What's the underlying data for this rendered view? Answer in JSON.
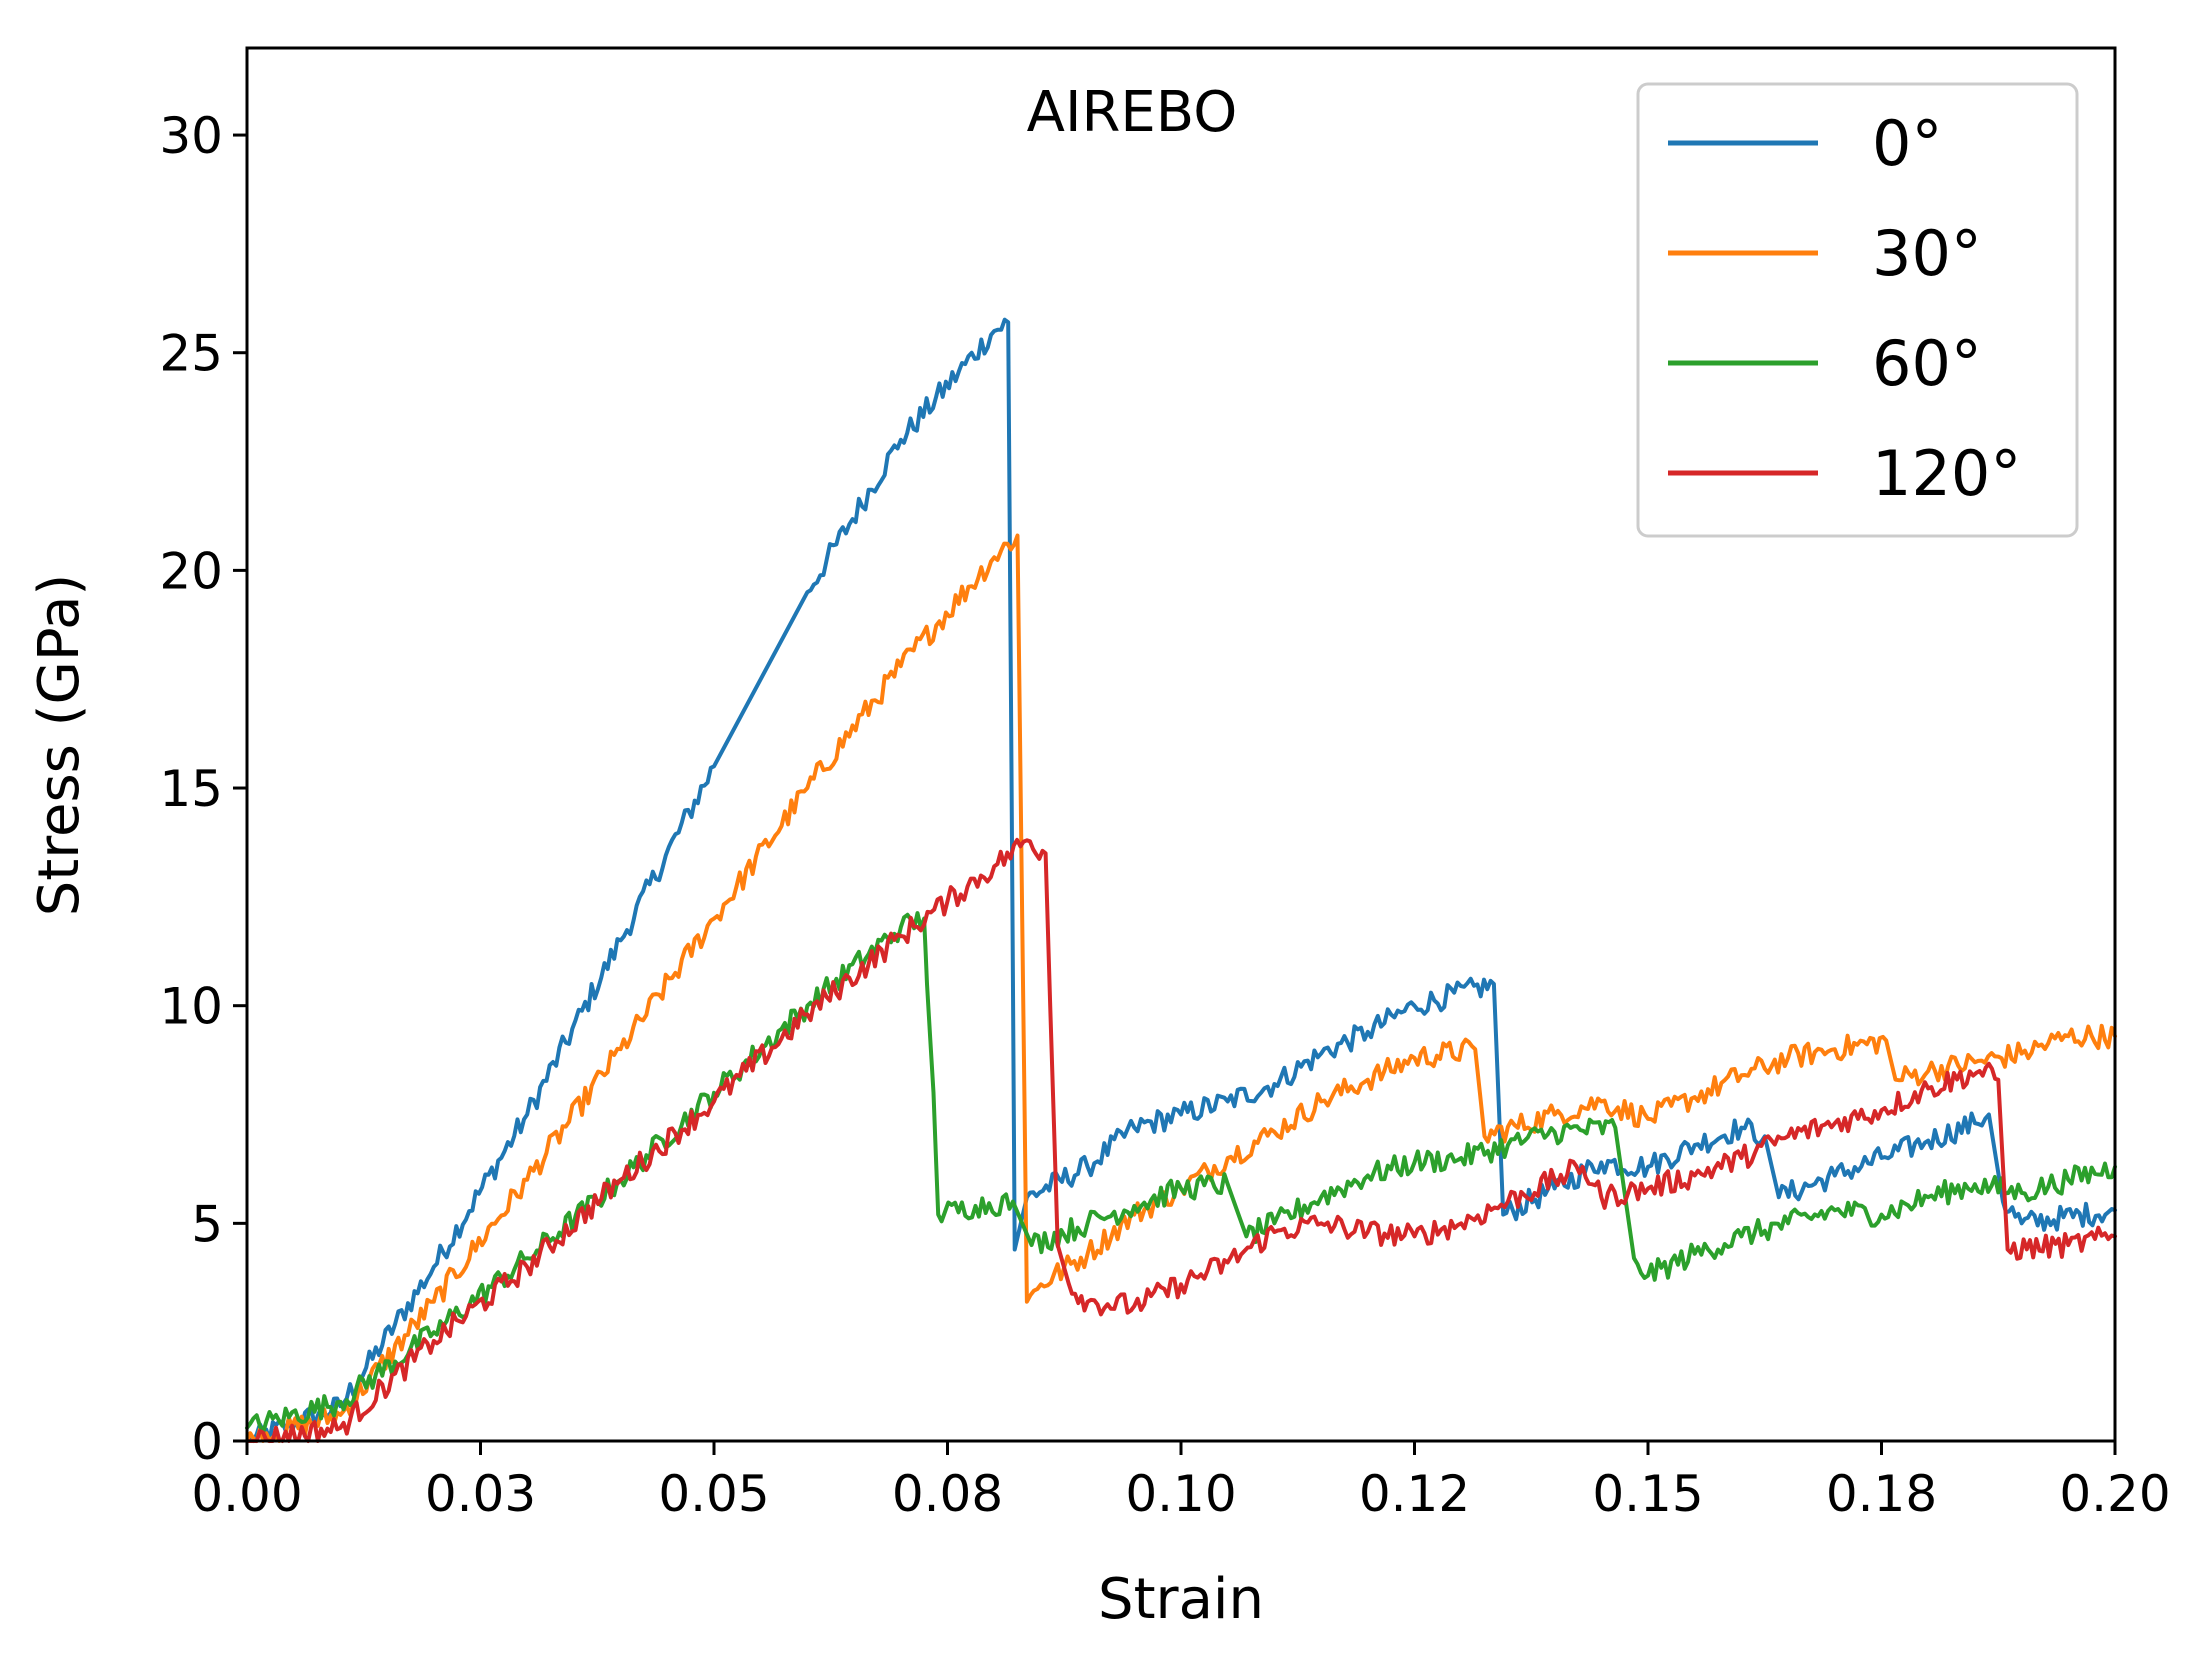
{
  "chart_data": {
    "type": "line",
    "title": "AIREBO",
    "xlabel": "Strain",
    "ylabel": "Stress (GPa)",
    "xlim": [
      0.0,
      0.2
    ],
    "ylim": [
      0,
      32
    ],
    "xticks": [
      0.0,
      0.025,
      0.05,
      0.075,
      0.1,
      0.125,
      0.15,
      0.175,
      0.2
    ],
    "xtick_labels": [
      "0.00",
      "0.03",
      "0.05",
      "0.08",
      "0.10",
      "0.12",
      "0.15",
      "0.18",
      "0.20"
    ],
    "yticks": [
      0,
      5,
      10,
      15,
      20,
      25,
      30
    ],
    "ytick_labels": [
      "0",
      "5",
      "10",
      "15",
      "20",
      "25",
      "30"
    ],
    "grid": false,
    "legend_position": "top-right",
    "series": [
      {
        "name": "0°",
        "color": "#1f77b4",
        "points": [
          [
            0.0,
            0.0
          ],
          [
            0.01,
            0.8
          ],
          [
            0.02,
            4.0
          ],
          [
            0.03,
            7.5
          ],
          [
            0.04,
            11.5
          ],
          [
            0.05,
            15.5
          ],
          [
            0.06,
            19.5
          ],
          [
            0.07,
            23.0
          ],
          [
            0.08,
            25.5
          ],
          [
            0.0815,
            25.7
          ],
          [
            0.0818,
            17.0
          ],
          [
            0.0822,
            4.4
          ],
          [
            0.0835,
            5.6
          ],
          [
            0.09,
            6.3
          ],
          [
            0.095,
            7.2
          ],
          [
            0.1,
            7.5
          ],
          [
            0.105,
            7.8
          ],
          [
            0.11,
            8.2
          ],
          [
            0.115,
            8.9
          ],
          [
            0.12,
            9.4
          ],
          [
            0.125,
            10.0
          ],
          [
            0.1335,
            10.5
          ],
          [
            0.1345,
            5.2
          ],
          [
            0.14,
            5.8
          ],
          [
            0.145,
            6.4
          ],
          [
            0.15,
            6.3
          ],
          [
            0.155,
            6.8
          ],
          [
            0.16,
            7.2
          ],
          [
            0.1625,
            7.0
          ],
          [
            0.164,
            5.6
          ],
          [
            0.17,
            6.1
          ],
          [
            0.175,
            6.5
          ],
          [
            0.18,
            6.9
          ],
          [
            0.185,
            7.3
          ],
          [
            0.1865,
            7.5
          ],
          [
            0.188,
            5.5
          ],
          [
            0.19,
            5.0
          ],
          [
            0.2,
            5.3
          ]
        ]
      },
      {
        "name": "30°",
        "color": "#ff7f0e",
        "points": [
          [
            0.0,
            0.0
          ],
          [
            0.01,
            0.6
          ],
          [
            0.02,
            3.2
          ],
          [
            0.03,
            6.0
          ],
          [
            0.04,
            9.0
          ],
          [
            0.05,
            12.0
          ],
          [
            0.06,
            15.0
          ],
          [
            0.07,
            17.8
          ],
          [
            0.08,
            20.3
          ],
          [
            0.0825,
            20.8
          ],
          [
            0.083,
            12.0
          ],
          [
            0.0835,
            3.2
          ],
          [
            0.085,
            3.6
          ],
          [
            0.09,
            4.3
          ],
          [
            0.095,
            5.2
          ],
          [
            0.1,
            5.8
          ],
          [
            0.105,
            6.5
          ],
          [
            0.11,
            7.1
          ],
          [
            0.115,
            7.8
          ],
          [
            0.12,
            8.3
          ],
          [
            0.125,
            8.8
          ],
          [
            0.1315,
            9.0
          ],
          [
            0.1325,
            7.0
          ],
          [
            0.14,
            7.5
          ],
          [
            0.145,
            7.8
          ],
          [
            0.15,
            7.4
          ],
          [
            0.155,
            7.9
          ],
          [
            0.16,
            8.4
          ],
          [
            0.165,
            8.8
          ],
          [
            0.17,
            9.0
          ],
          [
            0.1755,
            9.2
          ],
          [
            0.1765,
            8.3
          ],
          [
            0.18,
            8.5
          ],
          [
            0.185,
            8.7
          ],
          [
            0.19,
            8.9
          ],
          [
            0.195,
            9.3
          ],
          [
            0.2,
            9.3
          ]
        ]
      },
      {
        "name": "60°",
        "color": "#2ca02c",
        "points": [
          [
            0.0,
            0.3
          ],
          [
            0.01,
            0.9
          ],
          [
            0.02,
            2.5
          ],
          [
            0.03,
            4.2
          ],
          [
            0.04,
            6.0
          ],
          [
            0.05,
            8.0
          ],
          [
            0.06,
            10.0
          ],
          [
            0.07,
            11.8
          ],
          [
            0.0725,
            12.0
          ],
          [
            0.0728,
            10.5
          ],
          [
            0.0735,
            8.0
          ],
          [
            0.074,
            5.2
          ],
          [
            0.078,
            5.4
          ],
          [
            0.082,
            5.5
          ],
          [
            0.084,
            4.5
          ],
          [
            0.09,
            5.0
          ],
          [
            0.095,
            5.4
          ],
          [
            0.1,
            5.8
          ],
          [
            0.105,
            5.9
          ],
          [
            0.107,
            4.7
          ],
          [
            0.11,
            5.0
          ],
          [
            0.115,
            5.6
          ],
          [
            0.12,
            6.1
          ],
          [
            0.125,
            6.4
          ],
          [
            0.13,
            6.5
          ],
          [
            0.135,
            6.8
          ],
          [
            0.14,
            7.1
          ],
          [
            0.1465,
            7.2
          ],
          [
            0.1485,
            4.2
          ],
          [
            0.15,
            3.8
          ],
          [
            0.155,
            4.3
          ],
          [
            0.16,
            4.7
          ],
          [
            0.165,
            5.0
          ],
          [
            0.17,
            5.3
          ],
          [
            0.175,
            5.2
          ],
          [
            0.18,
            5.6
          ],
          [
            0.185,
            5.9
          ],
          [
            0.19,
            5.7
          ],
          [
            0.195,
            6.0
          ],
          [
            0.2,
            6.3
          ]
        ]
      },
      {
        "name": "120°",
        "color": "#d62728",
        "points": [
          [
            0.0,
            0.0
          ],
          [
            0.01,
            0.3
          ],
          [
            0.02,
            2.3
          ],
          [
            0.03,
            4.0
          ],
          [
            0.04,
            6.0
          ],
          [
            0.05,
            7.8
          ],
          [
            0.06,
            9.8
          ],
          [
            0.07,
            11.6
          ],
          [
            0.075,
            12.4
          ],
          [
            0.08,
            13.2
          ],
          [
            0.0835,
            13.8
          ],
          [
            0.0855,
            13.5
          ],
          [
            0.086,
            10.0
          ],
          [
            0.0868,
            4.5
          ],
          [
            0.088,
            3.6
          ],
          [
            0.09,
            3.2
          ],
          [
            0.095,
            3.1
          ],
          [
            0.1,
            3.6
          ],
          [
            0.105,
            4.1
          ],
          [
            0.11,
            4.8
          ],
          [
            0.115,
            5.0
          ],
          [
            0.12,
            4.8
          ],
          [
            0.125,
            4.7
          ],
          [
            0.13,
            5.0
          ],
          [
            0.135,
            5.5
          ],
          [
            0.14,
            6.0
          ],
          [
            0.143,
            6.3
          ],
          [
            0.145,
            5.6
          ],
          [
            0.15,
            5.8
          ],
          [
            0.155,
            6.1
          ],
          [
            0.16,
            6.5
          ],
          [
            0.165,
            7.0
          ],
          [
            0.17,
            7.3
          ],
          [
            0.175,
            7.6
          ],
          [
            0.18,
            8.1
          ],
          [
            0.1855,
            8.5
          ],
          [
            0.1875,
            8.3
          ],
          [
            0.1885,
            4.4
          ],
          [
            0.195,
            4.5
          ],
          [
            0.2,
            4.7
          ]
        ]
      }
    ]
  }
}
